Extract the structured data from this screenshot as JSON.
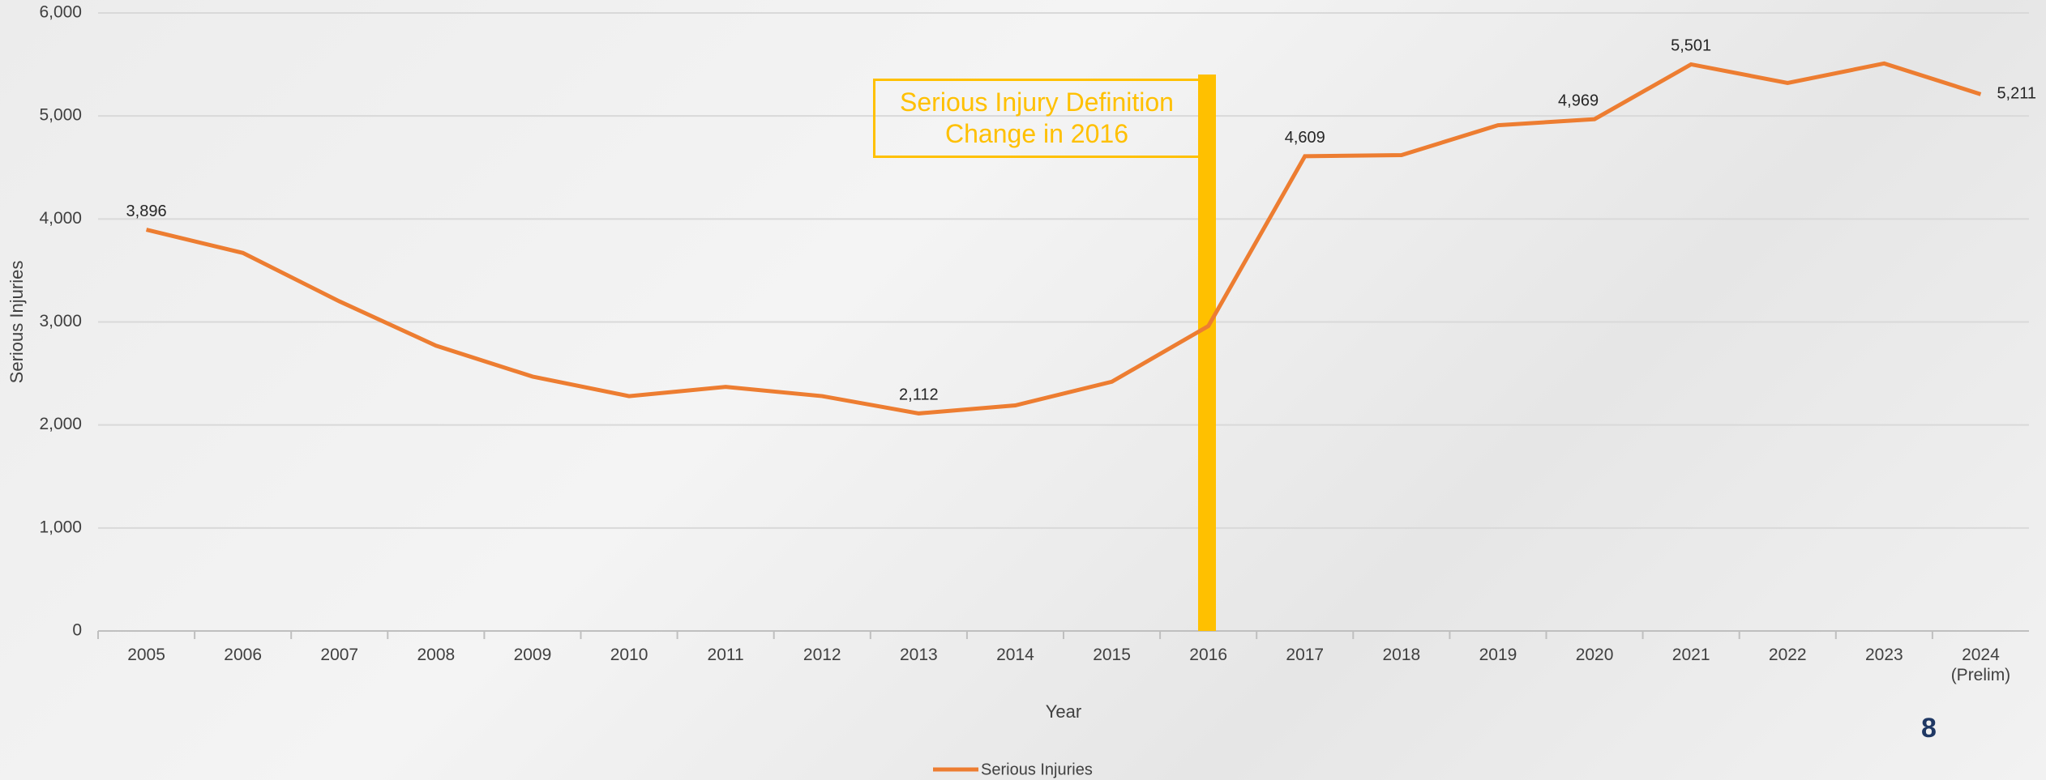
{
  "chart_data": {
    "type": "line",
    "categories": [
      "2005",
      "2006",
      "2007",
      "2008",
      "2009",
      "2010",
      "2011",
      "2012",
      "2013",
      "2014",
      "2015",
      "2016",
      "2017",
      "2018",
      "2019",
      "2020",
      "2021",
      "2022",
      "2023",
      "2024\n(Prelim)"
    ],
    "series": [
      {
        "name": "Serious Injuries",
        "color": "#ed7d31",
        "values": [
          3896,
          3670,
          3200,
          2770,
          2470,
          2280,
          2370,
          2280,
          2112,
          2190,
          2420,
          2960,
          4609,
          4620,
          4910,
          4969,
          5501,
          5320,
          5510,
          5211
        ],
        "value_labels": [
          "3,896",
          null,
          null,
          null,
          null,
          null,
          null,
          null,
          "2,112",
          null,
          null,
          null,
          "4,609",
          null,
          null,
          "4,969",
          "5,501",
          null,
          null,
          "5,211"
        ]
      }
    ],
    "ylim": [
      0,
      6000
    ],
    "yticks": [
      0,
      {
        "value": 1000,
        "label": "1,000"
      },
      {
        "value": 2000,
        "label": "2,000"
      },
      {
        "value": 3000,
        "label": "3,000"
      },
      {
        "value": 4000,
        "label": "4,000"
      },
      {
        "value": 5000,
        "label": "5,000"
      },
      {
        "value": 6000,
        "label": "6,000"
      }
    ],
    "xlabel": "Year",
    "ylabel": "Serious Injuries",
    "grid": true,
    "legend": "bottom",
    "annotation": "Serious Injury Definition\nChange in 2016"
  },
  "page_number": "8"
}
